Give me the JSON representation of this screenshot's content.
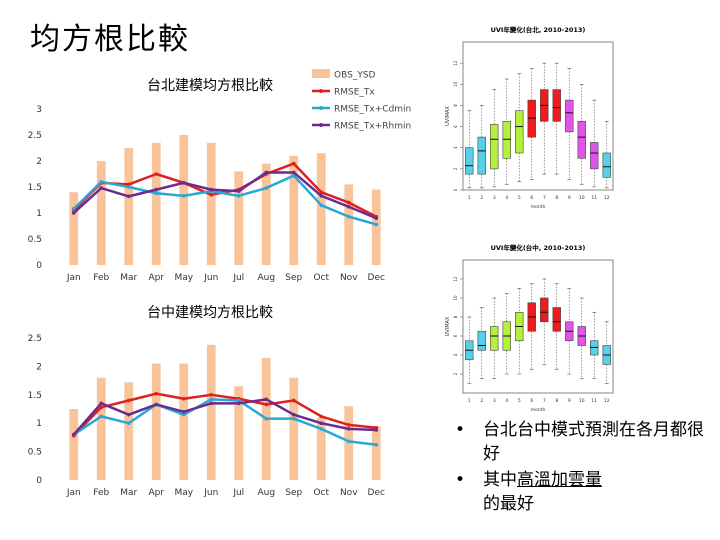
{
  "page": {
    "title": "均方根比較"
  },
  "bullets": [
    {
      "text": "台北台中模式預測在各月都很好"
    },
    {
      "pre": "其中",
      "emph": "高溫加雲量",
      "post": "的最好"
    }
  ],
  "chart_data": [
    {
      "type": "bar",
      "title": "台北建模均方根比較",
      "categories": [
        "Jan",
        "Feb",
        "Mar",
        "Apr",
        "May",
        "Jun",
        "Jul",
        "Aug",
        "Sep",
        "Oct",
        "Nov",
        "Dec"
      ],
      "ylim": [
        0,
        3
      ],
      "yticks": [
        "0",
        "0.5",
        "1",
        "1.5",
        "2",
        "2.5",
        "3"
      ],
      "legend_position": "top-right",
      "series": [
        {
          "name": "OBS_YSD",
          "kind": "bar",
          "color": "#f9c49a",
          "values": [
            1.4,
            2.0,
            2.25,
            2.35,
            2.5,
            2.35,
            1.8,
            1.95,
            2.1,
            2.15,
            1.55,
            1.45
          ]
        },
        {
          "name": "RMSE_Tx",
          "kind": "line",
          "color": "#e0201e",
          "values": [
            1.05,
            1.58,
            1.55,
            1.75,
            1.58,
            1.35,
            1.45,
            1.75,
            1.95,
            1.4,
            1.2,
            0.93
          ]
        },
        {
          "name": "RMSE_Tx+Cdmin",
          "kind": "line",
          "color": "#27a8d6",
          "values": [
            1.08,
            1.6,
            1.5,
            1.38,
            1.33,
            1.42,
            1.33,
            1.48,
            1.72,
            1.15,
            0.93,
            0.78
          ]
        },
        {
          "name": "RMSE_Tx+Rhmin",
          "kind": "line",
          "color": "#6a2c91",
          "values": [
            1.0,
            1.48,
            1.32,
            1.45,
            1.58,
            1.45,
            1.42,
            1.78,
            1.78,
            1.33,
            1.12,
            0.9
          ]
        }
      ]
    },
    {
      "type": "bar",
      "title": "台中建模均方根比較",
      "categories": [
        "Jan",
        "Feb",
        "Mar",
        "Apr",
        "May",
        "Jun",
        "Jul",
        "Aug",
        "Sep",
        "Oct",
        "Nov",
        "Dec"
      ],
      "ylim": [
        0,
        2.5
      ],
      "yticks": [
        "0",
        "0.5",
        "1",
        "1.5",
        "2",
        "2.5"
      ],
      "series": [
        {
          "name": "OBS_YSD",
          "kind": "bar",
          "color": "#f9c49a",
          "values": [
            1.25,
            1.8,
            1.72,
            2.05,
            2.05,
            2.38,
            1.65,
            2.15,
            1.8,
            1.1,
            1.3,
            0.95
          ]
        },
        {
          "name": "RMSE_Tx",
          "kind": "line",
          "color": "#e0201e",
          "values": [
            0.78,
            1.28,
            1.4,
            1.52,
            1.43,
            1.5,
            1.43,
            1.33,
            1.4,
            1.12,
            0.97,
            0.92
          ]
        },
        {
          "name": "RMSE_Tx+Cdmin",
          "kind": "line",
          "color": "#27a8d6",
          "values": [
            0.8,
            1.12,
            1.0,
            1.33,
            1.15,
            1.42,
            1.4,
            1.08,
            1.08,
            0.9,
            0.68,
            0.62
          ]
        },
        {
          "name": "RMSE_Tx+Rhmin",
          "kind": "line",
          "color": "#6a2c91",
          "values": [
            0.8,
            1.35,
            1.15,
            1.33,
            1.2,
            1.35,
            1.35,
            1.42,
            1.15,
            1.0,
            0.9,
            0.88
          ]
        }
      ]
    },
    {
      "type": "box",
      "title": "UVI年變化(台北, 2010-2013)",
      "xlabel": "month",
      "ylabel": "UVIMAX",
      "categories": [
        "1",
        "2",
        "3",
        "4",
        "5",
        "6",
        "7",
        "8",
        "9",
        "10",
        "11",
        "12"
      ],
      "ylim": [
        0,
        14
      ],
      "yticks": [
        "0",
        "2",
        "4",
        "6",
        "8",
        "10",
        "12"
      ],
      "boxes": [
        {
          "q1": 1.5,
          "median": 2.3,
          "q3": 4.0,
          "min": 0.2,
          "max": 7.5,
          "color": "#5ad0e8"
        },
        {
          "q1": 1.5,
          "median": 3.7,
          "q3": 5.0,
          "min": 0.2,
          "max": 8.0,
          "color": "#5ad0e8"
        },
        {
          "q1": 2.0,
          "median": 4.8,
          "q3": 6.2,
          "min": 0.3,
          "max": 9.5,
          "color": "#b5f03c"
        },
        {
          "q1": 3.0,
          "median": 4.8,
          "q3": 6.5,
          "min": 0.5,
          "max": 10.5,
          "color": "#b5f03c"
        },
        {
          "q1": 3.5,
          "median": 6.0,
          "q3": 7.5,
          "min": 0.8,
          "max": 11.0,
          "color": "#b5f03c"
        },
        {
          "q1": 5.0,
          "median": 6.8,
          "q3": 8.5,
          "min": 1.0,
          "max": 11.5,
          "color": "#ee1c1c"
        },
        {
          "q1": 6.5,
          "median": 8.0,
          "q3": 9.5,
          "min": 1.5,
          "max": 12.0,
          "color": "#ee1c1c"
        },
        {
          "q1": 6.5,
          "median": 7.8,
          "q3": 9.5,
          "min": 1.5,
          "max": 12.0,
          "color": "#ee1c1c"
        },
        {
          "q1": 5.5,
          "median": 7.3,
          "q3": 8.5,
          "min": 1.0,
          "max": 11.5,
          "color": "#df55e8"
        },
        {
          "q1": 3.0,
          "median": 5.0,
          "q3": 6.5,
          "min": 0.5,
          "max": 10.0,
          "color": "#df55e8"
        },
        {
          "q1": 2.0,
          "median": 3.5,
          "q3": 4.5,
          "min": 0.3,
          "max": 8.5,
          "color": "#df55e8"
        },
        {
          "q1": 1.2,
          "median": 2.2,
          "q3": 3.5,
          "min": 0.2,
          "max": 6.5,
          "color": "#5ad0e8"
        }
      ]
    },
    {
      "type": "box",
      "title": "UVI年變化(台中, 2010-2013)",
      "xlabel": "month",
      "ylabel": "UVIMAX",
      "categories": [
        "1",
        "2",
        "3",
        "4",
        "5",
        "6",
        "7",
        "8",
        "9",
        "10",
        "11",
        "12"
      ],
      "ylim": [
        0,
        14
      ],
      "yticks": [
        "2",
        "4",
        "6",
        "8",
        "10",
        "12"
      ],
      "boxes": [
        {
          "q1": 3.5,
          "median": 4.5,
          "q3": 5.5,
          "min": 1.0,
          "max": 8.0,
          "color": "#5ad0e8"
        },
        {
          "q1": 4.5,
          "median": 5.0,
          "q3": 6.5,
          "min": 1.5,
          "max": 9.0,
          "color": "#5ad0e8"
        },
        {
          "q1": 4.5,
          "median": 6.0,
          "q3": 7.0,
          "min": 1.5,
          "max": 10.0,
          "color": "#b5f03c"
        },
        {
          "q1": 4.5,
          "median": 6.0,
          "q3": 7.5,
          "min": 2.0,
          "max": 10.5,
          "color": "#b5f03c"
        },
        {
          "q1": 5.5,
          "median": 7.0,
          "q3": 8.5,
          "min": 2.0,
          "max": 11.0,
          "color": "#b5f03c"
        },
        {
          "q1": 6.5,
          "median": 8.0,
          "q3": 9.5,
          "min": 2.5,
          "max": 11.5,
          "color": "#ee1c1c"
        },
        {
          "q1": 7.5,
          "median": 8.5,
          "q3": 10.0,
          "min": 3.0,
          "max": 12.0,
          "color": "#ee1c1c"
        },
        {
          "q1": 6.5,
          "median": 7.5,
          "q3": 9.0,
          "min": 2.5,
          "max": 11.5,
          "color": "#ee1c1c"
        },
        {
          "q1": 5.5,
          "median": 6.5,
          "q3": 7.5,
          "min": 2.0,
          "max": 11.0,
          "color": "#df55e8"
        },
        {
          "q1": 5.0,
          "median": 6.0,
          "q3": 7.0,
          "min": 1.5,
          "max": 10.0,
          "color": "#df55e8"
        },
        {
          "q1": 4.0,
          "median": 4.8,
          "q3": 5.5,
          "min": 1.5,
          "max": 8.5,
          "color": "#5ad0e8"
        },
        {
          "q1": 3.0,
          "median": 4.0,
          "q3": 5.0,
          "min": 1.0,
          "max": 7.5,
          "color": "#5ad0e8"
        }
      ]
    }
  ]
}
